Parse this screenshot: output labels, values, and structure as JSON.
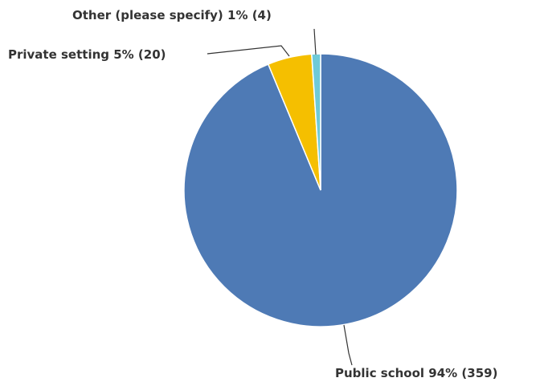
{
  "chart_data": {
    "type": "pie",
    "title": "",
    "slices": [
      {
        "label": "Public school",
        "percent": "94%",
        "count": 359,
        "value": 359,
        "color": "#4e7ab5"
      },
      {
        "label": "Private setting",
        "percent": "5%",
        "count": 20,
        "value": 20,
        "color": "#f5bf00"
      },
      {
        "label": "Other (please specify)",
        "percent": "1%",
        "count": 4,
        "value": 4,
        "color": "#6fcad8"
      }
    ],
    "labels": {
      "public": "Public school 94% (359)",
      "private": "Private setting 5% (20)",
      "other": "Other (please specify) 1% (4)"
    },
    "legend": "none"
  }
}
